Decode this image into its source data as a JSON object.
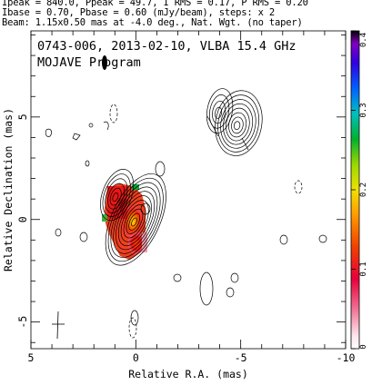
{
  "header": {
    "line1": "Ipeak = 840.0, Ppeak = 49.7, I RMS = 0.17, P RMS = 0.20",
    "line2": "Ibase = 0.70, Pbase = 0.60 (mJy/beam), steps: x 2",
    "line3": "Beam: 1.15x0.50 mas at -4.0 deg., Nat. Wgt. (no taper)"
  },
  "plot": {
    "title": "0743-006, 2013-02-10, VLBA 15.4 GHz",
    "program": "MOJAVE Program"
  },
  "colors": {
    "contour": "#000000",
    "background": "#ffffff"
  },
  "chart_data": {
    "type": "heatmap",
    "xlabel": "Relative R.A. (mas)",
    "ylabel": "Relative Declination (mas)",
    "xlim": [
      5,
      -10
    ],
    "ylim": [
      -6.3,
      9.2
    ],
    "xticks": [
      5,
      0,
      -5,
      -10
    ],
    "yticks": [
      -5,
      0,
      5
    ],
    "colorbar": {
      "vmin": 0,
      "vmax": 0.4,
      "ticks": [
        0,
        0.1,
        0.2,
        0.3,
        0.4
      ],
      "tick_labels": [
        "0",
        "0.1",
        "0.2",
        "0.3",
        "0.4"
      ]
    },
    "contour_sources": [
      {
        "x": 0.0,
        "y": 0.0,
        "semi_major_mas": 2.4,
        "semi_minor_mas": 1.15,
        "pa_deg": 25,
        "levels": 11
      },
      {
        "x": 0.9,
        "y": 1.2,
        "semi_major_mas": 1.3,
        "semi_minor_mas": 0.7,
        "pa_deg": 20,
        "levels": 6
      },
      {
        "x": -4.9,
        "y": 4.7,
        "semi_major_mas": 1.6,
        "semi_minor_mas": 1.1,
        "pa_deg": 10,
        "levels": 8
      },
      {
        "x": -4.0,
        "y": 5.3,
        "semi_major_mas": 1.1,
        "semi_minor_mas": 0.6,
        "pa_deg": 10,
        "levels": 4
      }
    ],
    "polarization_regions": [
      {
        "x": 1.0,
        "y": 1.0,
        "value": 0.02
      },
      {
        "x": 0.0,
        "y": 0.3,
        "value": 0.06
      },
      {
        "x": -0.2,
        "y": -0.9,
        "value": 0.1
      },
      {
        "x": 0.5,
        "y": 1.8,
        "value": 0.22
      }
    ],
    "beam": {
      "major_mas": 1.15,
      "minor_mas": 0.5,
      "pa_deg": -4.0
    }
  }
}
